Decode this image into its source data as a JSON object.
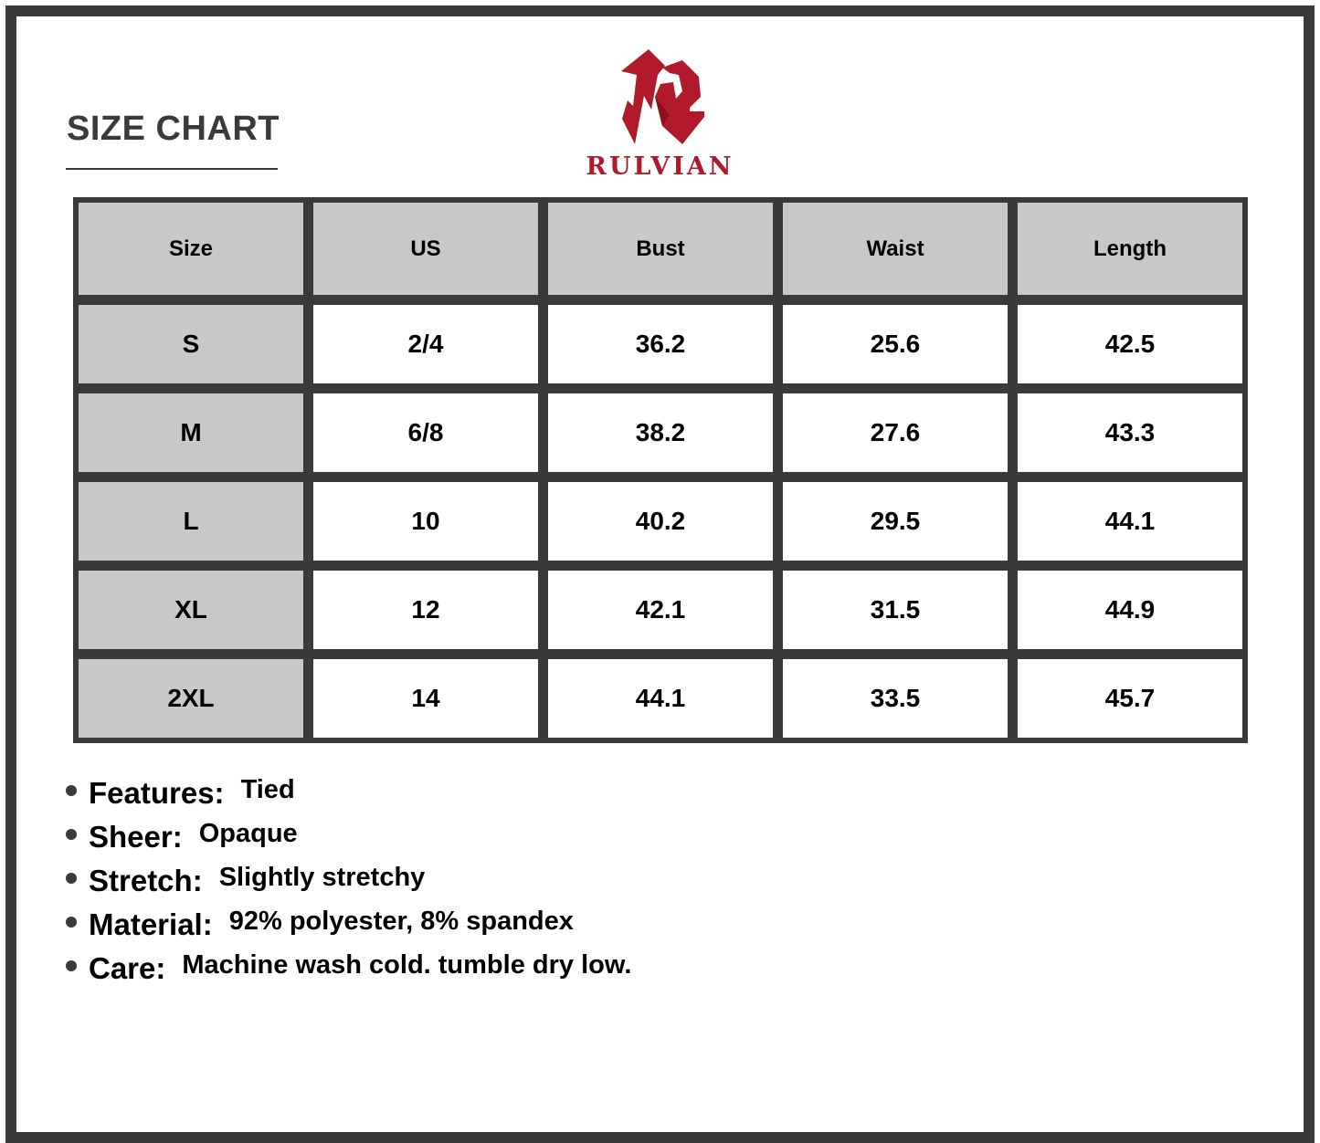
{
  "title": "SIZE CHART",
  "brand": {
    "name": "RULVIAN",
    "color": "#b01a2a"
  },
  "table": {
    "headers": [
      "Size",
      "US",
      "Bust",
      "Waist",
      "Length"
    ],
    "rows": [
      [
        "S",
        "2/4",
        "36.2",
        "25.6",
        "42.5"
      ],
      [
        "M",
        "6/8",
        "38.2",
        "27.6",
        "43.3"
      ],
      [
        "L",
        "10",
        "40.2",
        "29.5",
        "44.1"
      ],
      [
        "XL",
        "12",
        "42.1",
        "31.5",
        "44.9"
      ],
      [
        "2XL",
        "14",
        "44.1",
        "33.5",
        "45.7"
      ]
    ]
  },
  "features": [
    {
      "label": "Features:",
      "value": "Tied"
    },
    {
      "label": "Sheer:",
      "value": "Opaque"
    },
    {
      "label": "Stretch:",
      "value": "Slightly stretchy"
    },
    {
      "label": "Material:",
      "value": "92% polyester, 8% spandex"
    },
    {
      "label": "Care:",
      "value": "Machine wash cold. tumble dry low."
    }
  ],
  "colors": {
    "frame": "#3a3a3a",
    "header_fill": "#c8c8c8",
    "cell_fill": "#ffffff"
  }
}
